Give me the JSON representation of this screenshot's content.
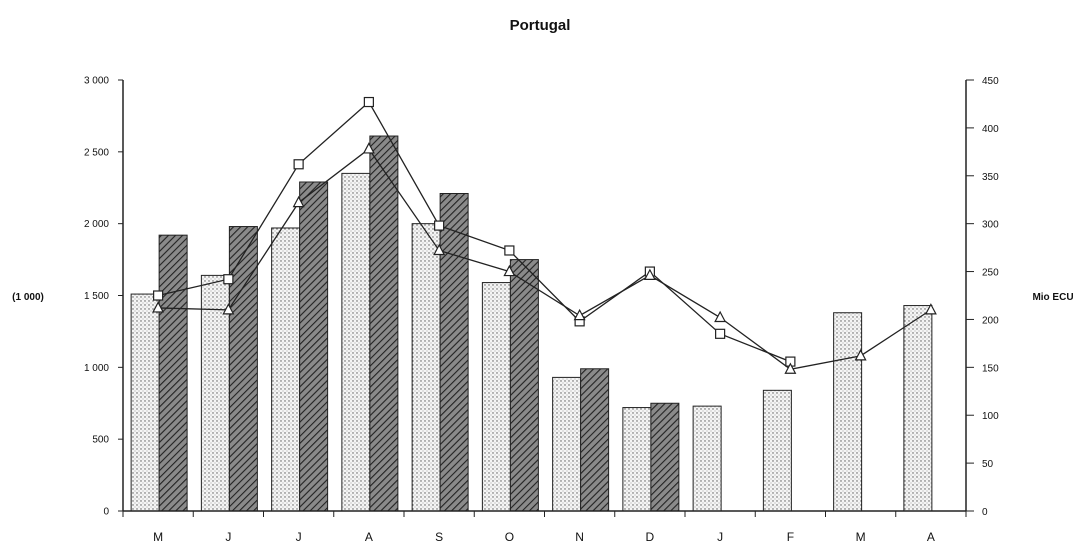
{
  "chart_data": {
    "type": "bar",
    "title": "Portugal",
    "ylabel_left": "(1 000)",
    "ylabel_right": "Mio ECU",
    "categories": [
      "M",
      "J",
      "J",
      "A",
      "S",
      "O",
      "N",
      "D",
      "J",
      "F",
      "M",
      "A"
    ],
    "left_axis": {
      "ylim": [
        0,
        3000
      ],
      "ticks": [
        "0",
        "500",
        "1 000",
        "1 500",
        "2 000",
        "2 500",
        "3 000"
      ]
    },
    "right_axis": {
      "ylim": [
        0,
        450
      ],
      "ticks": [
        "0",
        "50",
        "100",
        "150",
        "200",
        "250",
        "300",
        "350",
        "400",
        "450"
      ]
    },
    "series": [
      {
        "kind": "bar",
        "axis": "left",
        "pattern": "dotted",
        "values": [
          1510,
          1640,
          1970,
          2350,
          2000,
          1590,
          930,
          720,
          730,
          840,
          1380,
          1430
        ]
      },
      {
        "kind": "bar",
        "axis": "left",
        "pattern": "hatched",
        "values": [
          1920,
          1980,
          2290,
          2610,
          2210,
          1750,
          990,
          750,
          null,
          null,
          null,
          null
        ]
      },
      {
        "kind": "line",
        "axis": "right",
        "marker": "square",
        "values": [
          225,
          242,
          362,
          427,
          298,
          272,
          198,
          250,
          185,
          156,
          null,
          null
        ]
      },
      {
        "kind": "line",
        "axis": "right",
        "marker": "triangle",
        "values": [
          212,
          210,
          322,
          378,
          272,
          250,
          204,
          246,
          202,
          148,
          162,
          210
        ]
      }
    ],
    "grid": false,
    "legend": "none",
    "colors": {
      "dotted_bar": "#f2f2f2",
      "hatched_bar": "#6a6a6a",
      "line": "#222222",
      "axis": "#222222"
    }
  }
}
